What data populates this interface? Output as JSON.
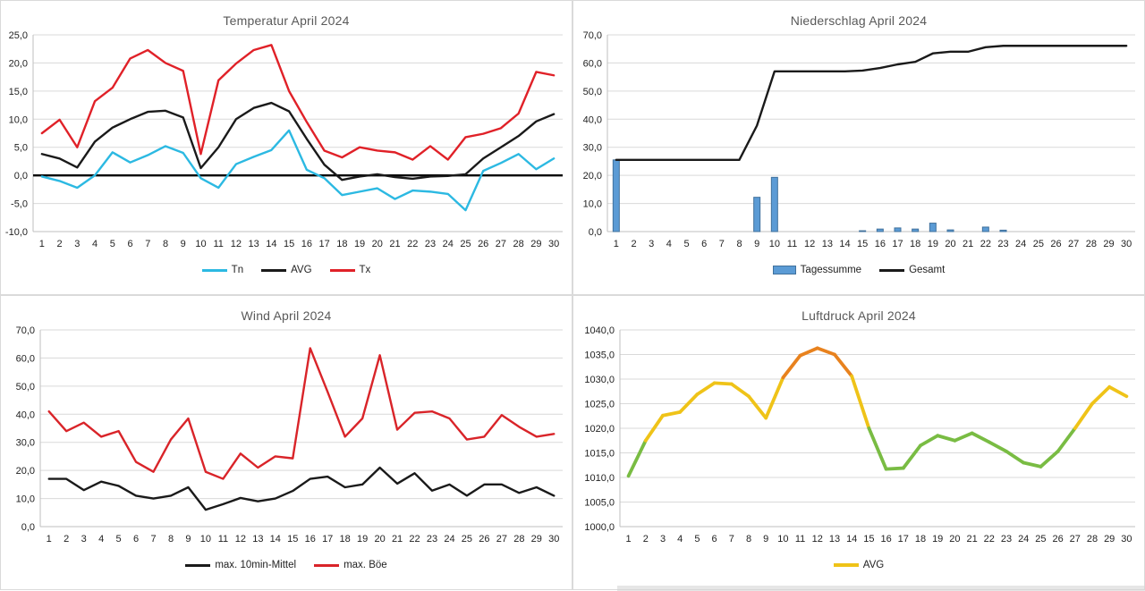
{
  "page": {
    "background": "#ffffff"
  },
  "chart_data": [
    {
      "id": "temperatur",
      "type": "line",
      "title": "Temperatur April 2024",
      "x": [
        1,
        2,
        3,
        4,
        5,
        6,
        7,
        8,
        9,
        10,
        11,
        12,
        13,
        14,
        15,
        16,
        17,
        18,
        19,
        20,
        21,
        22,
        23,
        24,
        25,
        26,
        27,
        28,
        29,
        30
      ],
      "xlabel": "",
      "ylabel": "",
      "ylim": [
        -10,
        25
      ],
      "ystep": 5,
      "ytick_format": "decimal-comma",
      "grid": true,
      "zero_line": true,
      "legend_position": "bottom",
      "series": [
        {
          "name": "Tn",
          "type": "line",
          "color": "#2CB9E2",
          "values": [
            -0.2,
            -1.0,
            -2.2,
            0.0,
            4.1,
            2.3,
            3.6,
            5.2,
            4.0,
            -0.5,
            -2.2,
            2.0,
            3.3,
            4.5,
            8.0,
            1.0,
            -0.5,
            -3.5,
            -2.9,
            -2.3,
            -4.2,
            -2.7,
            -2.9,
            -3.3,
            -6.2,
            0.8,
            2.2,
            3.8,
            1.1,
            3.0
          ]
        },
        {
          "name": "AVG",
          "type": "line",
          "color": "#1A1A1A",
          "values": [
            3.8,
            3.0,
            1.4,
            6.0,
            8.5,
            10.0,
            11.3,
            11.5,
            10.3,
            1.3,
            5.0,
            10.0,
            12.0,
            12.9,
            11.4,
            6.5,
            1.9,
            -0.8,
            -0.2,
            0.2,
            -0.3,
            -0.6,
            -0.2,
            -0.1,
            0.2,
            3.0,
            5.0,
            7.0,
            9.6,
            10.9
          ]
        },
        {
          "name": "Tx",
          "type": "line",
          "color": "#E02128",
          "values": [
            7.5,
            9.9,
            5.0,
            13.2,
            15.6,
            20.8,
            22.3,
            20.0,
            18.6,
            3.8,
            16.9,
            19.9,
            22.3,
            23.2,
            15.0,
            9.5,
            4.4,
            3.2,
            5.0,
            4.4,
            4.1,
            2.8,
            5.2,
            2.8,
            6.8,
            7.4,
            8.4,
            11.0,
            18.4,
            17.8
          ]
        }
      ]
    },
    {
      "id": "niederschlag",
      "type": "bar",
      "title": "Niederschlag April 2024",
      "x": [
        1,
        2,
        3,
        4,
        5,
        6,
        7,
        8,
        9,
        10,
        11,
        12,
        13,
        14,
        15,
        16,
        17,
        18,
        19,
        20,
        21,
        22,
        23,
        24,
        25,
        26,
        27,
        28,
        29,
        30
      ],
      "xlabel": "",
      "ylabel": "",
      "ylim": [
        0,
        70
      ],
      "ystep": 10,
      "ytick_format": "decimal-comma",
      "grid": true,
      "zero_line": false,
      "legend_position": "bottom",
      "series": [
        {
          "name": "Tagessumme",
          "type": "bar",
          "color": "#5B9BD5",
          "border_color": "#41719C",
          "values": [
            25.5,
            0,
            0,
            0,
            0,
            0,
            0,
            0,
            12.2,
            19.3,
            0,
            0,
            0,
            0,
            0.3,
            0.9,
            1.3,
            0.9,
            3.0,
            0.6,
            0,
            1.6,
            0.5,
            0,
            0,
            0,
            0,
            0,
            0,
            0
          ]
        },
        {
          "name": "Gesamt",
          "type": "line",
          "color": "#1A1A1A",
          "values": [
            25.5,
            25.5,
            25.5,
            25.5,
            25.5,
            25.5,
            25.5,
            25.5,
            37.7,
            57.0,
            57.0,
            57.0,
            57.0,
            57.0,
            57.3,
            58.2,
            59.5,
            60.4,
            63.4,
            64.0,
            64.0,
            65.6,
            66.1,
            66.1,
            66.1,
            66.1,
            66.1,
            66.1,
            66.1,
            66.1
          ]
        }
      ]
    },
    {
      "id": "wind",
      "type": "line",
      "title": "Wind April 2024",
      "x": [
        1,
        2,
        3,
        4,
        5,
        6,
        7,
        8,
        9,
        10,
        11,
        12,
        13,
        14,
        15,
        16,
        17,
        18,
        19,
        20,
        21,
        22,
        23,
        24,
        25,
        26,
        27,
        28,
        29,
        30
      ],
      "xlabel": "",
      "ylabel": "",
      "ylim": [
        0,
        70
      ],
      "ystep": 10,
      "ytick_format": "decimal-comma",
      "grid": true,
      "zero_line": false,
      "legend_position": "bottom",
      "series": [
        {
          "name": "max. 10min-Mittel",
          "type": "line",
          "color": "#1A1A1A",
          "values": [
            17,
            17,
            13,
            16,
            14.5,
            11,
            10,
            11,
            14,
            6,
            8,
            10.2,
            9,
            10,
            12.7,
            17,
            17.8,
            14,
            15,
            21,
            15.3,
            19,
            12.8,
            15,
            11,
            15,
            15,
            12,
            14,
            11
          ]
        },
        {
          "name": "max. Böe",
          "type": "line",
          "color": "#D92429",
          "values": [
            41,
            34,
            37,
            32,
            34,
            23,
            19.5,
            31,
            38.5,
            19.5,
            17,
            26,
            21,
            25,
            24.3,
            63.5,
            48,
            32,
            38.5,
            61,
            34.5,
            40.5,
            41,
            38.5,
            31,
            32,
            39.7,
            35.5,
            32,
            33
          ]
        }
      ]
    },
    {
      "id": "luftdruck",
      "type": "line",
      "title": "Luftdruck April 2024",
      "x": [
        1,
        2,
        3,
        4,
        5,
        6,
        7,
        8,
        9,
        10,
        11,
        12,
        13,
        14,
        15,
        16,
        17,
        18,
        19,
        20,
        21,
        22,
        23,
        24,
        25,
        26,
        27,
        28,
        29,
        30
      ],
      "xlabel": "",
      "ylabel": "",
      "ylim": [
        1000,
        1040
      ],
      "ystep": 5,
      "ytick_format": "decimal-comma",
      "grid": true,
      "zero_line": false,
      "legend_position": "bottom",
      "series": [
        {
          "name": "AVG",
          "type": "line",
          "color": "#EFC318",
          "line_width": 3.8,
          "color_rule": {
            "thresholds": [
              1019.8,
              1031.5
            ],
            "colors": [
              "#79BC43",
              "#EFC318",
              "#E8821E"
            ]
          },
          "values": [
            1010.3,
            1017.5,
            1022.6,
            1023.3,
            1026.9,
            1029.2,
            1029.0,
            1026.5,
            1022.1,
            1030.3,
            1034.8,
            1036.3,
            1035.0,
            1030.6,
            1020.0,
            1011.7,
            1011.9,
            1016.5,
            1018.5,
            1017.5,
            1019.0,
            1017.2,
            1015.3,
            1013.0,
            1012.2,
            1015.3,
            1020.0,
            1025.0,
            1028.4,
            1026.5
          ]
        }
      ]
    }
  ]
}
